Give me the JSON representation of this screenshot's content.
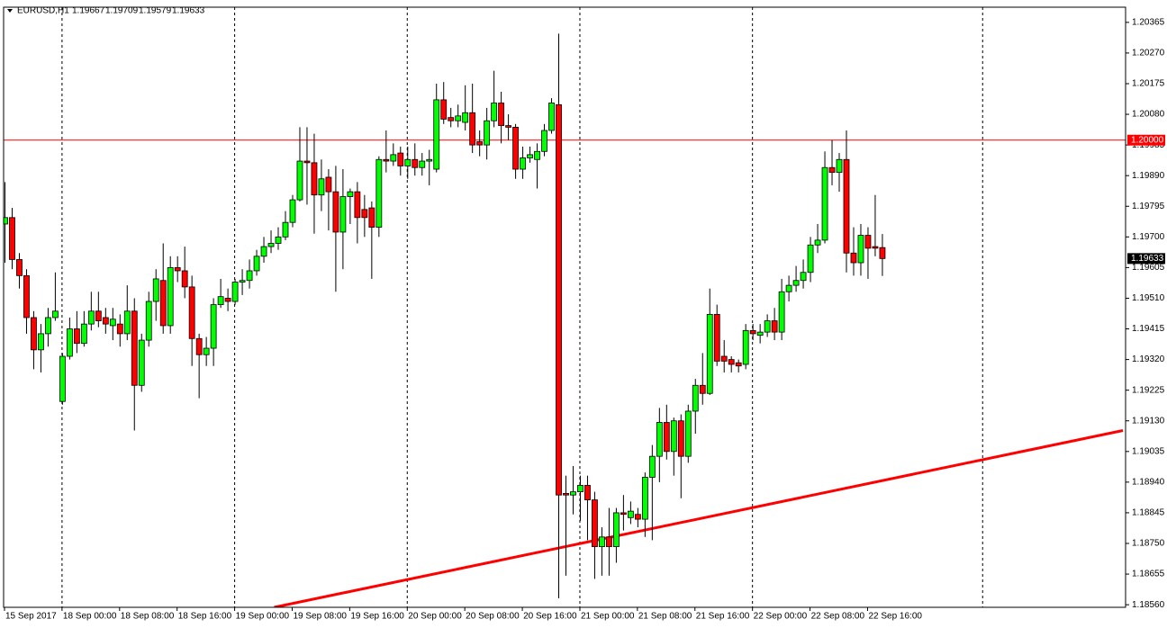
{
  "header": {
    "symbol": "EURUSD,H1"
  },
  "chart_data": {
    "type": "candlestick",
    "bull_color": "#00ff00",
    "bear_color": "#ff0000",
    "outline_color": "#000000",
    "xlim": [
      -0.125,
      155.875
    ],
    "ylim": [
      1.18552,
      1.20412
    ],
    "yticks": [
      1.20365,
      {
        "value": 1.2027,
        "label": "1.20270"
      },
      1.20175,
      {
        "value": 1.2008,
        "label": "1.20080"
      },
      1.19985,
      {
        "value": 1.1989,
        "label": "1.19890"
      },
      1.19795,
      {
        "value": 1.197,
        "label": "1.19700"
      },
      1.19605,
      {
        "value": 1.1951,
        "label": "1.19510"
      },
      1.19415,
      {
        "value": 1.1932,
        "label": "1.19320"
      },
      1.19225,
      {
        "value": 1.1913,
        "label": "1.19130"
      },
      1.19035,
      {
        "value": 1.1894,
        "label": "1.18940"
      },
      1.18845,
      {
        "value": 1.1875,
        "label": "1.18750"
      },
      1.18655,
      {
        "value": 1.1856,
        "label": "1.18560"
      }
    ],
    "xticks": [
      {
        "value": 0,
        "label": "15 Sep 2017"
      },
      {
        "value": 8,
        "label": "18 Sep 00:00"
      },
      {
        "value": 16,
        "label": "18 Sep 08:00"
      },
      {
        "value": 24,
        "label": "18 Sep 16:00"
      },
      {
        "value": 32,
        "label": "19 Sep 00:00"
      },
      {
        "value": 40,
        "label": "19 Sep 08:00"
      },
      {
        "value": 48,
        "label": "19 Sep 16:00"
      },
      {
        "value": 56,
        "label": "20 Sep 00:00"
      },
      {
        "value": 64,
        "label": "20 Sep 08:00"
      },
      {
        "value": 72,
        "label": "20 Sep 16:00"
      },
      {
        "value": 80,
        "label": "21 Sep 00:00"
      },
      {
        "value": 88,
        "label": "21 Sep 08:00"
      },
      {
        "value": 96,
        "label": "21 Sep 16:00"
      },
      {
        "value": 104,
        "label": "22 Sep 00:00"
      },
      {
        "value": 112,
        "label": "22 Sep 08:00"
      },
      {
        "value": 120,
        "label": "22 Sep 16:00"
      }
    ],
    "hline": {
      "value": 1.2,
      "label": "1.20000",
      "color": "#ff0000"
    },
    "trendline": {
      "points": [
        [
          37.5,
          1.18552
        ],
        [
          155.5,
          1.191
        ]
      ],
      "color": "#ff0000"
    },
    "series": [
      {
        "open": 1.1974,
        "high": 1.1987,
        "low": 1.1962,
        "close": 1.1976
      },
      {
        "open": 1.1976,
        "high": 1.1979,
        "low": 1.196,
        "close": 1.1963
      },
      {
        "open": 1.1963,
        "high": 1.1965,
        "low": 1.1954,
        "close": 1.1958
      },
      {
        "open": 1.1958,
        "high": 1.196,
        "low": 1.194,
        "close": 1.1945
      },
      {
        "open": 1.1945,
        "high": 1.1947,
        "low": 1.1929,
        "close": 1.1935
      },
      {
        "open": 1.1935,
        "high": 1.1943,
        "low": 1.1928,
        "close": 1.194
      },
      {
        "open": 1.194,
        "high": 1.1948,
        "low": 1.1936,
        "close": 1.1945
      },
      {
        "open": 1.1945,
        "high": 1.1959,
        "low": 1.1944,
        "close": 1.1947
      },
      {
        "open": 1.1919,
        "high": 1.1934,
        "low": 1.1918,
        "close": 1.1933
      },
      {
        "open": 1.1933,
        "high": 1.1945,
        "low": 1.1932,
        "close": 1.19415
      },
      {
        "open": 1.19415,
        "high": 1.1947,
        "low": 1.1934,
        "close": 1.1937
      },
      {
        "open": 1.1937,
        "high": 1.1947,
        "low": 1.1936,
        "close": 1.1943
      },
      {
        "open": 1.1943,
        "high": 1.1953,
        "low": 1.1941,
        "close": 1.1947
      },
      {
        "open": 1.1947,
        "high": 1.1953,
        "low": 1.1942,
        "close": 1.1944
      },
      {
        "open": 1.1945,
        "high": 1.1948,
        "low": 1.194,
        "close": 1.1943
      },
      {
        "open": 1.19425,
        "high": 1.1948,
        "low": 1.1938,
        "close": 1.19445
      },
      {
        "open": 1.1943,
        "high": 1.1946,
        "low": 1.1936,
        "close": 1.194
      },
      {
        "open": 1.194,
        "high": 1.1955,
        "low": 1.1938,
        "close": 1.1947
      },
      {
        "open": 1.1947,
        "high": 1.1951,
        "low": 1.191,
        "close": 1.1924
      },
      {
        "open": 1.1924,
        "high": 1.194,
        "low": 1.1922,
        "close": 1.1938
      },
      {
        "open": 1.1938,
        "high": 1.1953,
        "low": 1.1936,
        "close": 1.195
      },
      {
        "open": 1.195,
        "high": 1.196,
        "low": 1.1944,
        "close": 1.1957
      },
      {
        "open": 1.19565,
        "high": 1.1968,
        "low": 1.194,
        "close": 1.19425
      },
      {
        "open": 1.19425,
        "high": 1.1964,
        "low": 1.194,
        "close": 1.19605
      },
      {
        "open": 1.19605,
        "high": 1.1964,
        "low": 1.1956,
        "close": 1.19595
      },
      {
        "open": 1.19595,
        "high": 1.1967,
        "low": 1.1951,
        "close": 1.19545
      },
      {
        "open": 1.19545,
        "high": 1.1958,
        "low": 1.193,
        "close": 1.19385
      },
      {
        "open": 1.19385,
        "high": 1.194,
        "low": 1.192,
        "close": 1.19335
      },
      {
        "open": 1.19335,
        "high": 1.1939,
        "low": 1.193,
        "close": 1.19355
      },
      {
        "open": 1.19355,
        "high": 1.1951,
        "low": 1.193,
        "close": 1.1949
      },
      {
        "open": 1.1949,
        "high": 1.1957,
        "low": 1.1948,
        "close": 1.19515
      },
      {
        "open": 1.1951,
        "high": 1.1954,
        "low": 1.1947,
        "close": 1.195
      },
      {
        "open": 1.195,
        "high": 1.1957,
        "low": 1.1949,
        "close": 1.1956
      },
      {
        "open": 1.1956,
        "high": 1.196,
        "low": 1.1952,
        "close": 1.19565
      },
      {
        "open": 1.19565,
        "high": 1.1963,
        "low": 1.1954,
        "close": 1.19595
      },
      {
        "open": 1.19595,
        "high": 1.1966,
        "low": 1.1958,
        "close": 1.1964
      },
      {
        "open": 1.1964,
        "high": 1.197,
        "low": 1.1962,
        "close": 1.1967
      },
      {
        "open": 1.1967,
        "high": 1.1972,
        "low": 1.1965,
        "close": 1.1968
      },
      {
        "open": 1.1968,
        "high": 1.1973,
        "low": 1.1966,
        "close": 1.197
      },
      {
        "open": 1.197,
        "high": 1.1978,
        "low": 1.1969,
        "close": 1.19745
      },
      {
        "open": 1.19745,
        "high": 1.1983,
        "low": 1.1973,
        "close": 1.19815
      },
      {
        "open": 1.19815,
        "high": 1.2004,
        "low": 1.1981,
        "close": 1.19935
      },
      {
        "open": 1.19935,
        "high": 1.2004,
        "low": 1.198,
        "close": 1.1993
      },
      {
        "open": 1.1993,
        "high": 1.2002,
        "low": 1.1971,
        "close": 1.1983
      },
      {
        "open": 1.1983,
        "high": 1.1994,
        "low": 1.1978,
        "close": 1.1988
      },
      {
        "open": 1.19885,
        "high": 1.1991,
        "low": 1.1972,
        "close": 1.1984
      },
      {
        "open": 1.1984,
        "high": 1.1992,
        "low": 1.1953,
        "close": 1.19715
      },
      {
        "open": 1.19715,
        "high": 1.1991,
        "low": 1.196,
        "close": 1.19825
      },
      {
        "open": 1.19825,
        "high": 1.1985,
        "low": 1.1974,
        "close": 1.1984
      },
      {
        "open": 1.1984,
        "high": 1.1987,
        "low": 1.1968,
        "close": 1.1976
      },
      {
        "open": 1.19785,
        "high": 1.1983,
        "low": 1.197,
        "close": 1.1976
      },
      {
        "open": 1.1979,
        "high": 1.1981,
        "low": 1.1957,
        "close": 1.1973
      },
      {
        "open": 1.1973,
        "high": 1.1995,
        "low": 1.197,
        "close": 1.1994
      },
      {
        "open": 1.1994,
        "high": 1.2003,
        "low": 1.199,
        "close": 1.19935
      },
      {
        "open": 1.19935,
        "high": 1.1999,
        "low": 1.1992,
        "close": 1.19955
      },
      {
        "open": 1.1996,
        "high": 1.1998,
        "low": 1.1989,
        "close": 1.1992
      },
      {
        "open": 1.1992,
        "high": 1.1998,
        "low": 1.1988,
        "close": 1.1994
      },
      {
        "open": 1.1994,
        "high": 1.1999,
        "low": 1.1989,
        "close": 1.19915
      },
      {
        "open": 1.19915,
        "high": 1.1996,
        "low": 1.1989,
        "close": 1.19935
      },
      {
        "open": 1.19935,
        "high": 1.1997,
        "low": 1.1986,
        "close": 1.1994
      },
      {
        "open": 1.1991,
        "high": 1.20175,
        "low": 1.199,
        "close": 1.20125
      },
      {
        "open": 1.20125,
        "high": 1.2018,
        "low": 1.2005,
        "close": 1.20065
      },
      {
        "open": 1.2007,
        "high": 1.201,
        "low": 1.2004,
        "close": 1.2006
      },
      {
        "open": 1.2006,
        "high": 1.2011,
        "low": 1.2004,
        "close": 1.20075
      },
      {
        "open": 1.20055,
        "high": 1.2017,
        "low": 1.2003,
        "close": 1.20085
      },
      {
        "open": 1.20085,
        "high": 1.20175,
        "low": 1.1996,
        "close": 1.19985
      },
      {
        "open": 1.19995,
        "high": 1.2003,
        "low": 1.1995,
        "close": 1.19985
      },
      {
        "open": 1.19985,
        "high": 1.201,
        "low": 1.1994,
        "close": 1.2006
      },
      {
        "open": 1.2006,
        "high": 1.20215,
        "low": 1.2004,
        "close": 1.20115
      },
      {
        "open": 1.20115,
        "high": 1.2015,
        "low": 1.1999,
        "close": 1.20045
      },
      {
        "open": 1.20045,
        "high": 1.2008,
        "low": 1.2,
        "close": 1.2004
      },
      {
        "open": 1.2004,
        "high": 1.2005,
        "low": 1.1988,
        "close": 1.1991
      },
      {
        "open": 1.1991,
        "high": 1.1998,
        "low": 1.1988,
        "close": 1.19945
      },
      {
        "open": 1.19945,
        "high": 1.1998,
        "low": 1.1993,
        "close": 1.19955
      },
      {
        "open": 1.1994,
        "high": 1.1999,
        "low": 1.1985,
        "close": 1.19965
      },
      {
        "open": 1.19965,
        "high": 1.2005,
        "low": 1.1995,
        "close": 1.2003
      },
      {
        "open": 1.2003,
        "high": 1.2013,
        "low": 1.2002,
        "close": 1.20115
      },
      {
        "open": 1.2011,
        "high": 1.2033,
        "low": 1.1858,
        "close": 1.189
      },
      {
        "open": 1.18905,
        "high": 1.1896,
        "low": 1.1865,
        "close": 1.189
      },
      {
        "open": 1.189,
        "high": 1.1899,
        "low": 1.1884,
        "close": 1.1891
      },
      {
        "open": 1.1891,
        "high": 1.1896,
        "low": 1.1882,
        "close": 1.1893
      },
      {
        "open": 1.1893,
        "high": 1.1896,
        "low": 1.1876,
        "close": 1.18885
      },
      {
        "open": 1.18885,
        "high": 1.1891,
        "low": 1.1864,
        "close": 1.1874
      },
      {
        "open": 1.1874,
        "high": 1.188,
        "low": 1.1865,
        "close": 1.1877
      },
      {
        "open": 1.1877,
        "high": 1.1886,
        "low": 1.1865,
        "close": 1.1874
      },
      {
        "open": 1.1874,
        "high": 1.1886,
        "low": 1.1869,
        "close": 1.18845
      },
      {
        "open": 1.18845,
        "high": 1.189,
        "low": 1.1879,
        "close": 1.1884
      },
      {
        "open": 1.1883,
        "high": 1.1888,
        "low": 1.1881,
        "close": 1.1885
      },
      {
        "open": 1.1884,
        "high": 1.1886,
        "low": 1.188,
        "close": 1.18825
      },
      {
        "open": 1.18825,
        "high": 1.1897,
        "low": 1.1877,
        "close": 1.18955
      },
      {
        "open": 1.18955,
        "high": 1.19055,
        "low": 1.1876,
        "close": 1.1902
      },
      {
        "open": 1.1902,
        "high": 1.1917,
        "low": 1.1894,
        "close": 1.19125
      },
      {
        "open": 1.19125,
        "high": 1.1918,
        "low": 1.1901,
        "close": 1.19035
      },
      {
        "open": 1.19035,
        "high": 1.1914,
        "low": 1.1896,
        "close": 1.1913
      },
      {
        "open": 1.1913,
        "high": 1.1915,
        "low": 1.1889,
        "close": 1.1902
      },
      {
        "open": 1.1902,
        "high": 1.1918,
        "low": 1.19,
        "close": 1.1916
      },
      {
        "open": 1.1916,
        "high": 1.1926,
        "low": 1.1909,
        "close": 1.1924
      },
      {
        "open": 1.1924,
        "high": 1.1934,
        "low": 1.1918,
        "close": 1.19215
      },
      {
        "open": 1.19215,
        "high": 1.1954,
        "low": 1.1921,
        "close": 1.1946
      },
      {
        "open": 1.1946,
        "high": 1.1949,
        "low": 1.193,
        "close": 1.19315
      },
      {
        "open": 1.1933,
        "high": 1.1938,
        "low": 1.1928,
        "close": 1.19315
      },
      {
        "open": 1.1932,
        "high": 1.1933,
        "low": 1.1928,
        "close": 1.19305
      },
      {
        "open": 1.1931,
        "high": 1.1932,
        "low": 1.1928,
        "close": 1.193
      },
      {
        "open": 1.19305,
        "high": 1.1943,
        "low": 1.1929,
        "close": 1.1941
      },
      {
        "open": 1.1941,
        "high": 1.1943,
        "low": 1.1938,
        "close": 1.194
      },
      {
        "open": 1.19395,
        "high": 1.1943,
        "low": 1.1937,
        "close": 1.19405
      },
      {
        "open": 1.19405,
        "high": 1.1946,
        "low": 1.1939,
        "close": 1.1944
      },
      {
        "open": 1.1944,
        "high": 1.1948,
        "low": 1.1938,
        "close": 1.19405
      },
      {
        "open": 1.19405,
        "high": 1.1957,
        "low": 1.1938,
        "close": 1.1953
      },
      {
        "open": 1.1953,
        "high": 1.1958,
        "low": 1.195,
        "close": 1.1955
      },
      {
        "open": 1.1955,
        "high": 1.1961,
        "low": 1.1953,
        "close": 1.19565
      },
      {
        "open": 1.19565,
        "high": 1.1963,
        "low": 1.1954,
        "close": 1.1959
      },
      {
        "open": 1.1959,
        "high": 1.197,
        "low": 1.1956,
        "close": 1.19675
      },
      {
        "open": 1.19675,
        "high": 1.1974,
        "low": 1.1965,
        "close": 1.1969
      },
      {
        "open": 1.1969,
        "high": 1.19965,
        "low": 1.1968,
        "close": 1.19915
      },
      {
        "open": 1.19915,
        "high": 1.2,
        "low": 1.1986,
        "close": 1.199
      },
      {
        "open": 1.199,
        "high": 1.1996,
        "low": 1.1984,
        "close": 1.1994
      },
      {
        "open": 1.1994,
        "high": 1.2003,
        "low": 1.1959,
        "close": 1.1965
      },
      {
        "open": 1.1965,
        "high": 1.1973,
        "low": 1.1958,
        "close": 1.1962
      },
      {
        "open": 1.1962,
        "high": 1.1974,
        "low": 1.1958,
        "close": 1.19705
      },
      {
        "open": 1.19705,
        "high": 1.1973,
        "low": 1.1957,
        "close": 1.19665
      },
      {
        "open": 1.1967,
        "high": 1.1983,
        "low": 1.1964,
        "close": 1.19665
      },
      {
        "open": 1.19667,
        "high": 1.19709,
        "low": 1.19579,
        "close": 1.19633
      }
    ]
  }
}
